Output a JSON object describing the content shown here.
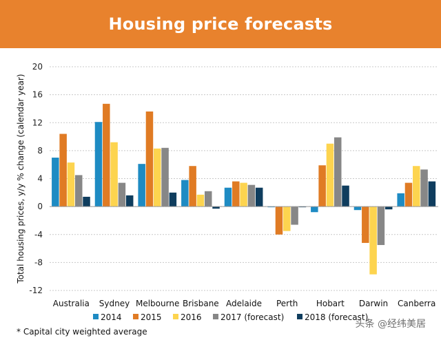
{
  "banner": {
    "title": "Housing price forecasts"
  },
  "footnote": "* Capital city weighted average",
  "watermark": "头条 @经纬美居",
  "chart_data": {
    "type": "bar",
    "title": "Housing price forecasts",
    "ylabel": "Total housing prices, y/y % change (calendar year)",
    "xlabel": "",
    "ylim": [
      -12,
      20
    ],
    "yticks": [
      -12,
      -8,
      -4,
      0,
      4,
      8,
      12,
      16,
      20
    ],
    "grid": "horizontal dotted",
    "legend_position": "bottom",
    "categories": [
      "Australia",
      "Sydney",
      "Melbourne",
      "Brisbane",
      "Adelaide",
      "Perth",
      "Hobart",
      "Darwin",
      "Canberra"
    ],
    "series": [
      {
        "name": "2014",
        "color": "#1e8bc3",
        "values": [
          7.0,
          12.1,
          6.1,
          3.8,
          2.7,
          -0.1,
          -0.8,
          -0.5,
          1.9
        ]
      },
      {
        "name": "2015",
        "color": "#e07b24",
        "values": [
          10.4,
          14.7,
          13.6,
          5.8,
          3.6,
          -4.0,
          5.9,
          -5.2,
          3.4
        ]
      },
      {
        "name": "2016",
        "color": "#fdd44f",
        "values": [
          6.3,
          9.2,
          8.3,
          1.7,
          3.4,
          -3.5,
          9.0,
          -9.7,
          5.8
        ]
      },
      {
        "name": "2017 (forecast)",
        "color": "#878787",
        "values": [
          4.5,
          3.4,
          8.4,
          2.2,
          3.1,
          -2.6,
          9.9,
          -5.5,
          5.3
        ]
      },
      {
        "name": "2018 (forecast)",
        "color": "#0f3d5e",
        "values": [
          1.4,
          1.6,
          2.0,
          -0.3,
          2.7,
          -0.1,
          3.0,
          -0.4,
          3.6
        ]
      }
    ]
  }
}
